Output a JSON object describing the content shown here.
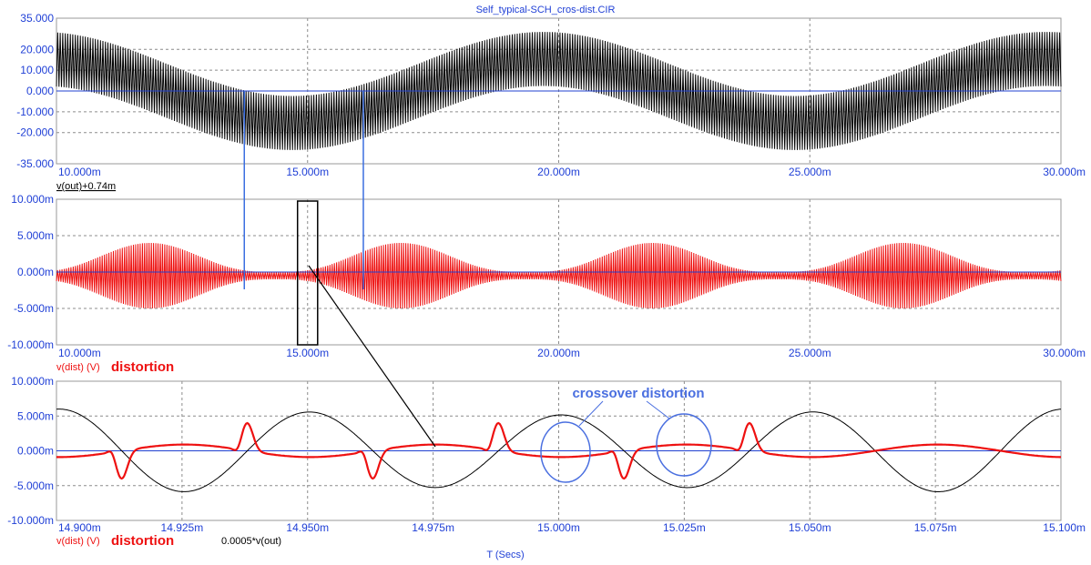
{
  "title": "Self_typical-SCH_cros-dist.CIR",
  "colors": {
    "axis_text": "#1f3fd6",
    "out": "#000000",
    "dist": "#ee1111",
    "marker": "#3b6ee0",
    "annot": "#4a6fe0"
  },
  "chart_data": [
    {
      "type": "line",
      "name": "top",
      "x_unit": "s",
      "xlim": [
        0.01,
        0.03
      ],
      "ylim": [
        -35,
        35
      ],
      "x_ticks": [
        "10.000m",
        "15.000m",
        "20.000m",
        "25.000m",
        "30.000m"
      ],
      "y_ticks": [
        "35.000",
        "20.000",
        "10.000",
        "0.000",
        "-10.000",
        "-20.000",
        "-35.000"
      ],
      "y_tick_values": [
        35,
        20,
        10,
        0,
        -10,
        -20,
        -35
      ],
      "series": [
        {
          "label": "v(out)+0.74m",
          "color": "#000000",
          "envelope_period_s": 0.01,
          "envelope_amplitude": 28,
          "carrier_amplitude": 13,
          "carrier_cycles": 400
        }
      ],
      "markers_x": [
        0.01374,
        0.01611
      ]
    },
    {
      "type": "line",
      "name": "middle",
      "xlim": [
        0.01,
        0.03
      ],
      "ylim": [
        -0.01,
        0.01
      ],
      "x_ticks": [
        "10.000m",
        "15.000m",
        "20.000m",
        "25.000m",
        "30.000m"
      ],
      "y_ticks": [
        "10.000m",
        "5.000m",
        "0.000m",
        "-5.000m",
        "-10.000m"
      ],
      "y_tick_values": [
        0.01,
        0.005,
        0,
        -0.005,
        -0.01
      ],
      "series": [
        {
          "label": "v(dist) (V)",
          "color": "#ee1111",
          "max_amplitude": 0.0045,
          "min_amplitude": 0.0005
        }
      ],
      "zoom_box_x": [
        0.0148,
        0.0152
      ]
    },
    {
      "type": "line",
      "name": "bottom",
      "xlim": [
        0.0149,
        0.0151
      ],
      "ylim": [
        -0.01,
        0.01
      ],
      "x_ticks": [
        "14.900m",
        "14.925m",
        "14.950m",
        "14.975m",
        "15.000m",
        "15.025m",
        "15.050m",
        "15.075m",
        "15.100m"
      ],
      "y_ticks": [
        "10.000m",
        "5.000m",
        "0.000m",
        "-5.000m",
        "-10.000m"
      ],
      "y_tick_values": [
        0.01,
        0.005,
        0,
        -0.005,
        -0.01
      ],
      "series": [
        {
          "label": "v(dist) (V)",
          "color": "#ee1111",
          "spike_amplitude": 0.004
        },
        {
          "label": "0.0005*v(out)",
          "color": "#000000",
          "amplitude": 0.006,
          "period_s": 5e-05
        }
      ],
      "xlabel": "T (Secs)",
      "annotation": "crossover distortion"
    }
  ],
  "labels": {
    "top_trace": "v(out)+0.74m",
    "mid_trace": "v(dist) (V)",
    "mid_name": "distortion",
    "bot_trace": "v(dist) (V)",
    "bot_name": "distortion",
    "bot_trace2": "0.0005*v(out)",
    "xlabel": "T (Secs)",
    "annotation": "crossover distortion"
  }
}
